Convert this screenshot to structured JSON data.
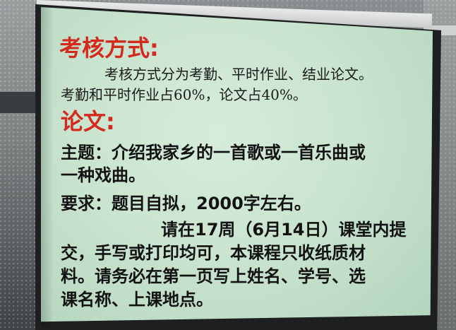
{
  "slide": {
    "assessment_heading": "考核方式:",
    "assessment_line1": "考核方式分为考勤、平时作业、结业论文。",
    "assessment_line2": "考勤和平时作业占60%，论文占40%。",
    "paper_heading": "论文:",
    "topic_line1": "主题：介绍我家乡的一首歌或一首乐曲或",
    "topic_line2": "一种戏曲。",
    "requirement_line": "要求：题目自拟，2000字左右。",
    "submit_line1": "请在17周（6月14日）课堂内提",
    "submit_line2": "交，手写或打印均可，本课程只收纸质材",
    "submit_line3": "料。请务必在第一页写上姓名、学号、选",
    "submit_line4": "课名称、上课地点。"
  },
  "colors": {
    "heading": "#d42a1e",
    "body": "#1b1b1b",
    "screen": "#c9e4cf"
  }
}
